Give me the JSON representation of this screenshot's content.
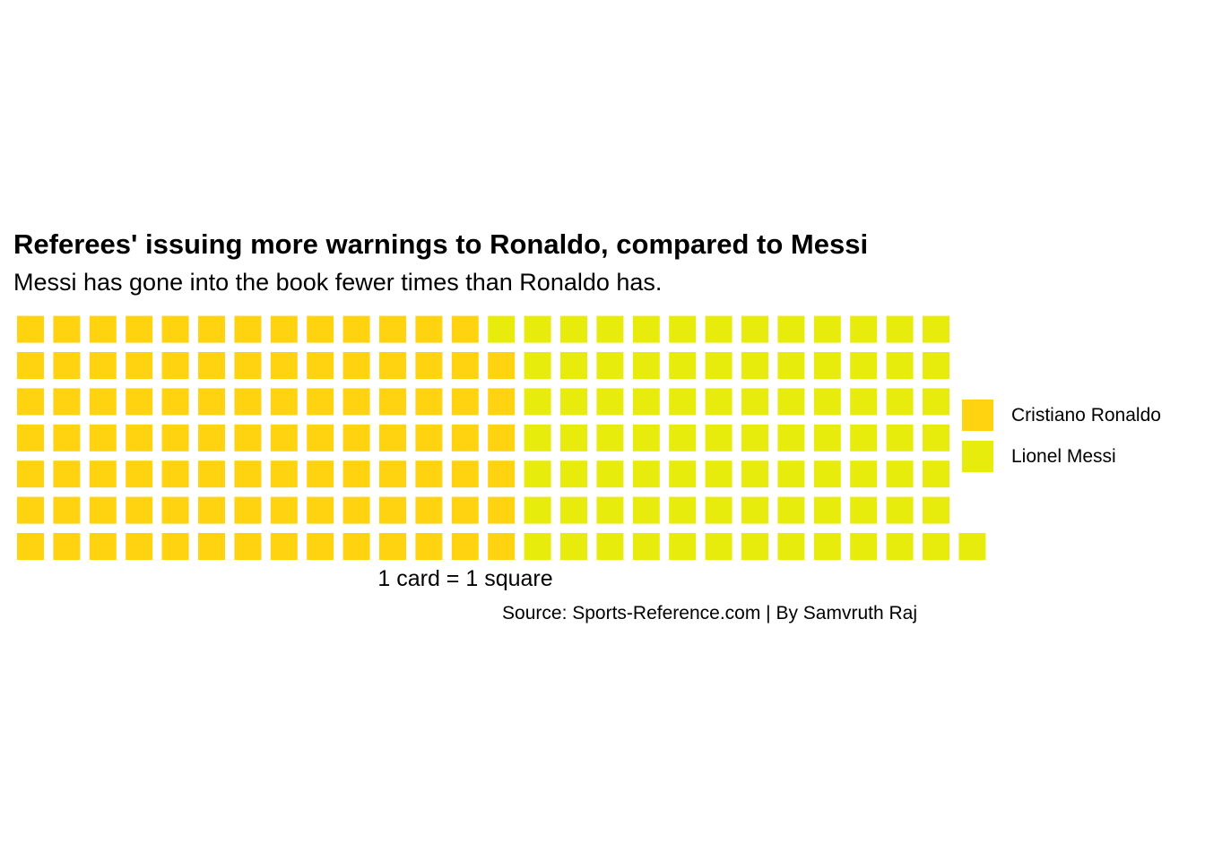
{
  "chart_data": {
    "type": "waffle",
    "title": "Referees' issuing more warnings to Ronaldo, compared to Messi",
    "subtitle": "Messi has gone into the book fewer times than Ronaldo has.",
    "xlabel": "1 card = 1 square",
    "caption": "Source: Sports-Reference.com | By Samvruth Raj",
    "rows": 7,
    "fill_order": "column-wise from bottom-left",
    "legend_position": "right",
    "series": [
      {
        "name": "Cristiano Ronaldo",
        "value": 97,
        "color": "#FFD30F"
      },
      {
        "name": "Lionel Messi",
        "value": 86,
        "color": "#E8EC0C"
      }
    ]
  }
}
